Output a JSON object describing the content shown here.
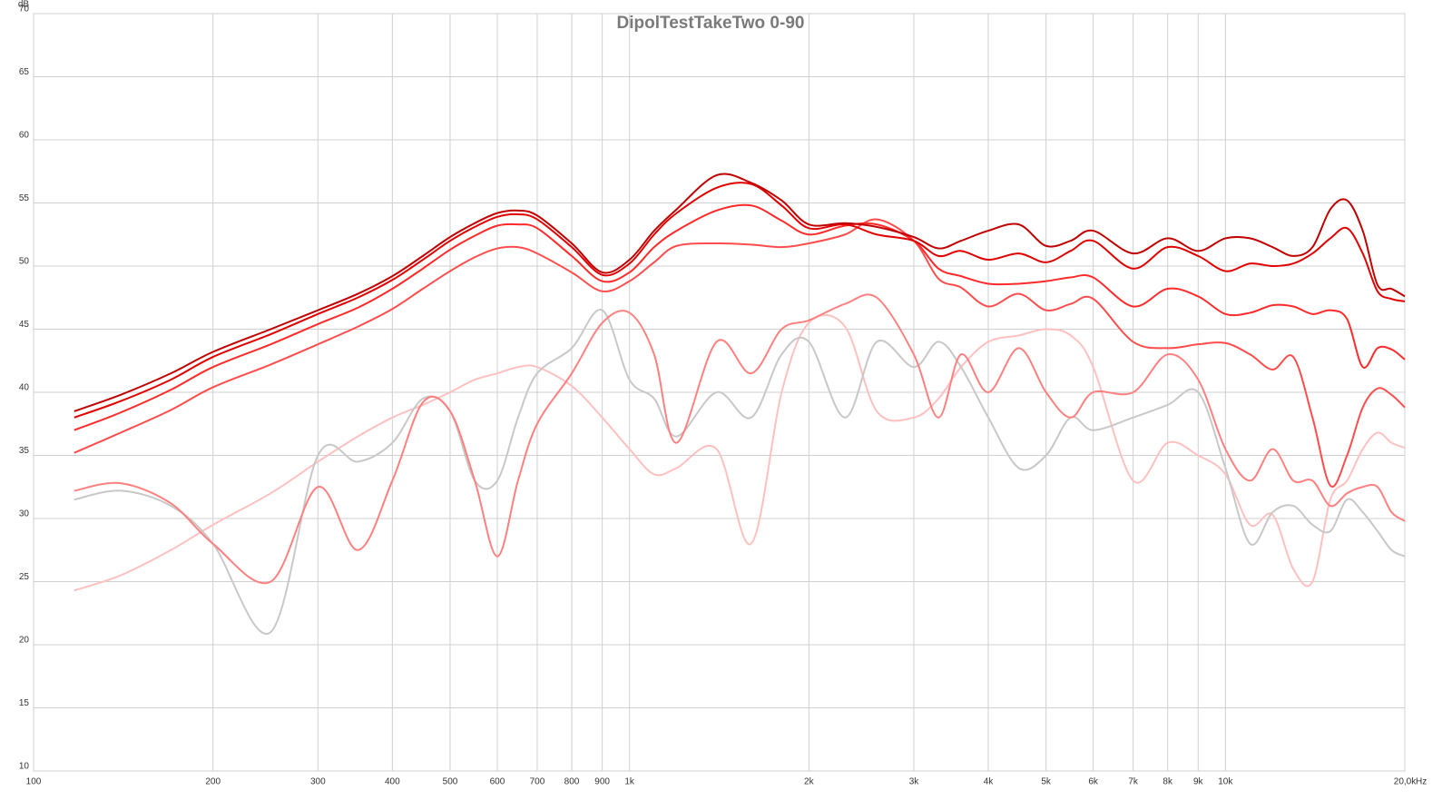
{
  "chart_data": {
    "type": "line",
    "title": "DipolTestTakeTwo 0-90",
    "y_label": "dB",
    "x_label": "Hz",
    "x_log": true,
    "grid": true,
    "xlim": [
      100,
      20000
    ],
    "ylim": [
      10,
      70
    ],
    "xticks": [
      100,
      200,
      300,
      400,
      500,
      600,
      700,
      800,
      900,
      {
        "value": 1000,
        "label": "1k"
      },
      {
        "value": 2000,
        "label": "2k"
      },
      {
        "value": 3000,
        "label": "3k"
      },
      {
        "value": 4000,
        "label": "4k"
      },
      {
        "value": 5000,
        "label": "5k"
      },
      {
        "value": 6000,
        "label": "6k"
      },
      {
        "value": 7000,
        "label": "7k"
      },
      {
        "value": 8000,
        "label": "8k"
      },
      {
        "value": 9000,
        "label": "9k"
      },
      {
        "value": 10000,
        "label": "10k"
      },
      {
        "value": 20000,
        "label": "20,0k"
      }
    ],
    "yticks": [
      10,
      15,
      20,
      25,
      30,
      35,
      40,
      45,
      50,
      55,
      60,
      65,
      70
    ],
    "x": [
      117,
      140,
      170,
      200,
      250,
      300,
      350,
      400,
      450,
      500,
      550,
      600,
      650,
      700,
      800,
      900,
      1000,
      1100,
      1200,
      1400,
      1600,
      1800,
      2000,
      2300,
      2600,
      3000,
      3300,
      3600,
      4000,
      4500,
      5000,
      5500,
      6000,
      7000,
      8000,
      9000,
      10000,
      11000,
      12000,
      13000,
      14000,
      15000,
      16000,
      17000,
      18000,
      19000,
      20000
    ],
    "series": [
      {
        "color": "#ffc0c0",
        "values": [
          24.3,
          25.5,
          27.5,
          29.5,
          32,
          34.5,
          36.5,
          38,
          39,
          40,
          41,
          41.5,
          42,
          42,
          40.5,
          38,
          35.5,
          33.5,
          34,
          35.5,
          28,
          40,
          45.5,
          45.2,
          38.5,
          38,
          39.5,
          42,
          44,
          44.5,
          45,
          44.5,
          42,
          33,
          36,
          35,
          33.5,
          29.5,
          30.3,
          26,
          25,
          31.5,
          33,
          35.5,
          36.8,
          36,
          35.6
        ]
      },
      {
        "color": "#c8c8c8",
        "values": [
          31.5,
          32.2,
          31,
          28,
          21,
          35,
          34.5,
          36,
          39.5,
          38.5,
          33,
          33,
          38,
          41.5,
          43.5,
          46.5,
          41,
          39.5,
          36.5,
          40,
          38,
          43,
          44,
          38,
          44,
          42,
          44,
          42,
          38,
          34,
          35,
          38,
          37,
          38,
          39,
          40,
          34,
          28,
          30.5,
          31,
          29.5,
          29,
          31.5,
          30.5,
          29,
          27.5,
          27
        ]
      },
      {
        "color": "#ff8080",
        "values": [
          32.2,
          32.8,
          31.2,
          28,
          25,
          32.5,
          27.5,
          33,
          39.2,
          38.5,
          33,
          27,
          33,
          37.5,
          41.5,
          45.5,
          46.3,
          43,
          36,
          44,
          41.5,
          45,
          45.7,
          47,
          47.5,
          43,
          38,
          43,
          40,
          43.5,
          40,
          38,
          40,
          40,
          43,
          41,
          35.5,
          33,
          35.5,
          33,
          33,
          31,
          32,
          32.5,
          32.5,
          30.5,
          29.8
        ]
      },
      {
        "color": "#ff4d4d",
        "values": [
          35.2,
          36.8,
          38.6,
          40.4,
          42.2,
          43.8,
          45.2,
          46.6,
          48.2,
          49.6,
          50.7,
          51.4,
          51.5,
          51,
          49.5,
          48,
          48.8,
          50.3,
          51.6,
          51.8,
          51.7,
          51.5,
          51.8,
          52.5,
          53.7,
          52,
          49,
          48.3,
          46.8,
          47.8,
          46.5,
          47,
          47.4,
          44,
          43.5,
          43.8,
          43.9,
          43,
          41.8,
          42.8,
          38,
          32.6,
          35,
          38.8,
          40.3,
          39.8,
          38.8
        ]
      },
      {
        "color": "#ff2a2a",
        "values": [
          37,
          38.4,
          40.2,
          42,
          43.8,
          45.4,
          46.7,
          48.2,
          49.8,
          51.3,
          52.4,
          53.2,
          53.3,
          53,
          50.8,
          48.8,
          49.5,
          51.5,
          52.8,
          54.4,
          54.8,
          53.6,
          52.5,
          53.2,
          53.3,
          52,
          49.8,
          49.2,
          48.6,
          48.6,
          48.8,
          49.1,
          49.1,
          46.8,
          48.2,
          47.6,
          46.2,
          46.3,
          46.9,
          46.8,
          46.2,
          46.5,
          45.8,
          42,
          43.5,
          43.4,
          42.6
        ]
      },
      {
        "color": "#e00000",
        "values": [
          38,
          39.3,
          41,
          42.8,
          44.6,
          46.2,
          47.5,
          48.9,
          50.5,
          52,
          53.1,
          53.9,
          54.1,
          53.7,
          51.5,
          49.3,
          50.2,
          52.5,
          54.2,
          56.2,
          56.5,
          54.8,
          53,
          53.3,
          52.5,
          52,
          50.8,
          51.2,
          50.5,
          51,
          50.3,
          51.2,
          52,
          49.8,
          51.5,
          50.8,
          49.6,
          50.2,
          50,
          50.2,
          51,
          52.2,
          53,
          51,
          48,
          47.4,
          47.2
        ]
      },
      {
        "color": "#c00000",
        "values": [
          38.5,
          39.8,
          41.5,
          43.2,
          45,
          46.5,
          47.8,
          49.2,
          50.8,
          52.3,
          53.4,
          54.2,
          54.4,
          54,
          51.8,
          49.5,
          50.5,
          52.8,
          54.5,
          57.2,
          56.6,
          55.2,
          53.3,
          53.4,
          53.1,
          52.3,
          51.4,
          52,
          52.8,
          53.3,
          51.6,
          52,
          52.8,
          51,
          52.2,
          51.2,
          52.2,
          52.2,
          51.5,
          50.8,
          51.5,
          54.5,
          55.2,
          52.8,
          48.5,
          48.2,
          47.6
        ]
      }
    ]
  }
}
